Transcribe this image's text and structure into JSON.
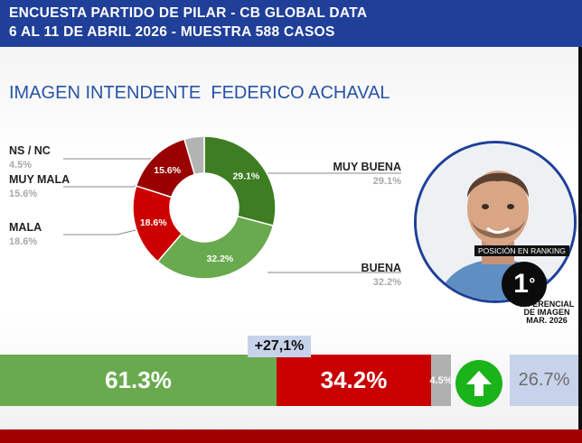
{
  "header": {
    "line1": "ENCUESTA PARTIDO DE PILAR - CB GLOBAL DATA",
    "line2": "6 AL 11 DE ABRIL 2026 - MUESTRA 588 CASOS"
  },
  "title": "IMAGEN INTENDENTE  FEDERICO ACHAVAL",
  "chart_data": [
    {
      "type": "pie",
      "title": "IMAGEN INTENDENTE  FEDERICO ACHAVAL",
      "categories": [
        "MUY BUENA",
        "BUENA",
        "MALA",
        "MUY MALA",
        "NS / NC"
      ],
      "values": [
        29.1,
        32.2,
        18.6,
        15.6,
        4.5
      ],
      "value_labels": [
        "29.1%",
        "32.2%",
        "18.6%",
        "15.6%",
        "4.5%"
      ],
      "colors": [
        "#3e7d22",
        "#6aaa4e",
        "#cc0000",
        "#990000",
        "#b3b3b3"
      ],
      "donut": true
    },
    {
      "type": "bar",
      "stacked": true,
      "orientation": "horizontal",
      "categories": [
        "positive",
        "negative",
        "ns"
      ],
      "values": [
        61.3,
        34.2,
        4.5
      ],
      "value_labels": [
        "61.3%",
        "34.2%",
        "4.5%"
      ],
      "colors": [
        "#6aaa4e",
        "#c80000",
        "#b0b0b0"
      ]
    }
  ],
  "legend": {
    "ns": {
      "name": "NS / NC",
      "value": "4.5%"
    },
    "muy_mala": {
      "name": "MUY MALA",
      "value": "15.6%"
    },
    "mala": {
      "name": "MALA",
      "value": "18.6%"
    },
    "muy_buena": {
      "name": "MUY BUENA",
      "value": "29.1%"
    },
    "buena": {
      "name": "BUENA",
      "value": "32.2%"
    }
  },
  "ranking": {
    "label": "POSICIÓN EN RANKING",
    "value": "1",
    "suffix": "º"
  },
  "summary": {
    "diff_badge": "+27,1%",
    "diff_title_1": "DIFERENCIAL",
    "diff_title_2": "DE IMAGEN",
    "diff_title_3": "MAR. 2026",
    "diff_prev": "26.7%",
    "trend_icon": "arrow-up-icon"
  },
  "colors": {
    "header_bg": "#1f3f99",
    "footer_bg": "#a10000",
    "title": "#2753a6",
    "arrow": "#1ab31a"
  }
}
